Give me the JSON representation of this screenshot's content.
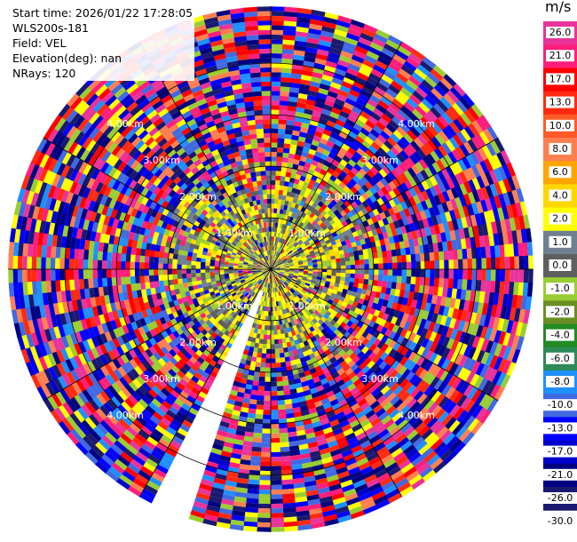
{
  "header": {
    "start_time": "Start time: 2026/01/22 17:28:05",
    "instrument": "WLS200s-181",
    "field": "Field: VEL",
    "elevation": "Elevation(deg): nan",
    "nrays": "NRays: 120"
  },
  "colorbar": {
    "unit": "m/s",
    "bins": [
      {
        "label": "26.0",
        "color": "#e8349a"
      },
      {
        "label": "21.0",
        "color": "#ff1e7a"
      },
      {
        "label": "17.0",
        "color": "#ff0000"
      },
      {
        "label": "13.0",
        "color": "#ff2a10"
      },
      {
        "label": "10.0",
        "color": "#ff5a28"
      },
      {
        "label": "8.0",
        "color": "#ff7f50"
      },
      {
        "label": "6.0",
        "color": "#ffa500"
      },
      {
        "label": "4.0",
        "color": "#ffd700"
      },
      {
        "label": "2.0",
        "color": "#ffff00"
      },
      {
        "label": "1.0",
        "color": "#708090"
      },
      {
        "label": "0.0",
        "color": "#5f5f5f"
      },
      {
        "label": "-1.0",
        "color": "#9acd32"
      },
      {
        "label": "-2.0",
        "color": "#6b8e23"
      },
      {
        "label": "-4.0",
        "color": "#228b22"
      },
      {
        "label": "-6.0",
        "color": "#2e8b57"
      },
      {
        "label": "-8.0",
        "color": "#1e90ff"
      },
      {
        "label": "-10.0",
        "color": "#4169e1"
      },
      {
        "label": "-13.0",
        "color": "#0000ff"
      },
      {
        "label": "-17.0",
        "color": "#0000cd"
      },
      {
        "label": "-21.0",
        "color": "#000080"
      },
      {
        "label": "-26.0",
        "color": "#191970"
      },
      {
        "label": "-30.0",
        "color": "#191970"
      }
    ]
  },
  "chart_data": {
    "type": "heatmap",
    "subtype": "polar PPI",
    "field": "VEL",
    "unit": "m/s",
    "nrays": 120,
    "vmin": -30.0,
    "vmax": 30.0,
    "range_rings_km": [
      1.0,
      2.0,
      3.0,
      4.0
    ],
    "ring_labels": [
      "1.00km",
      "2.00km",
      "3.00km",
      "4.00km",
      "1.00km",
      "2.00km",
      "3.00km",
      "4.00km",
      "1.00km",
      "2.00km",
      "3.00km",
      "4.00km",
      "1.00km",
      "2.00km",
      "3.00km",
      "4.00km"
    ],
    "max_range_km": 5.1,
    "spoke_bearings_deg": [
      0,
      30,
      60,
      90,
      120,
      150,
      180,
      210,
      240,
      270,
      300,
      330
    ],
    "missing_sector_deg": [
      199,
      206
    ],
    "near_range_km": 1.6,
    "near_range_dominant_values_m_s": [
      -1.0,
      0.0,
      1.0,
      2.0,
      4.0
    ],
    "far_range_description": "noise: random velocities across full scale"
  }
}
